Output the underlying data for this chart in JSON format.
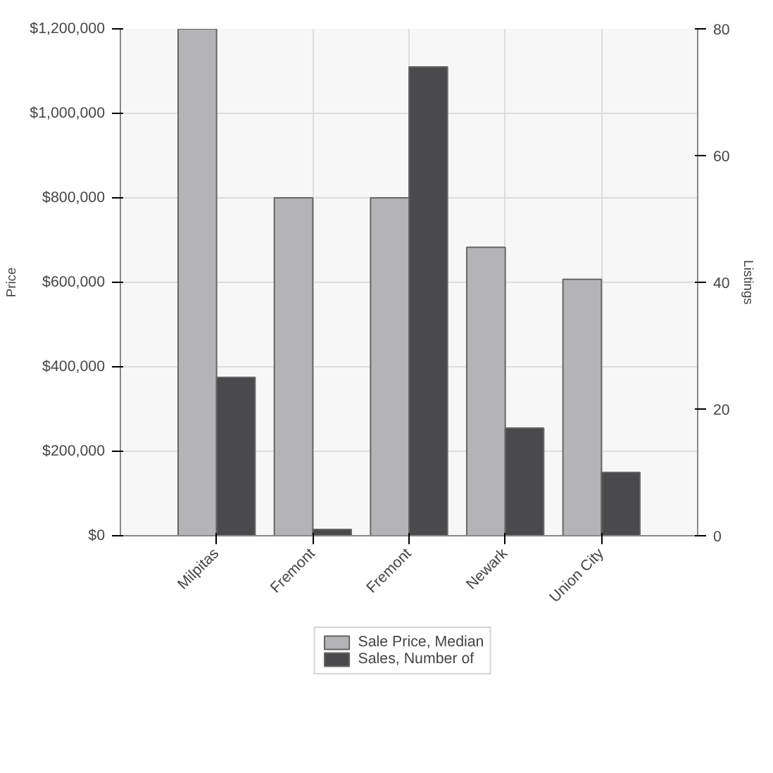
{
  "chart_data": {
    "type": "bar",
    "categories": [
      "Milpitas",
      "Fremont",
      "Fremont",
      "Newark",
      "Union City"
    ],
    "ylabel": "Price",
    "y2label": "Listings",
    "series": [
      {
        "name": "Sale Price, Median",
        "color": "#b4b4b6",
        "values": [
          1200000,
          800000,
          800000,
          683000,
          607000
        ]
      },
      {
        "name": "Sales, Number of",
        "color": "#4a4a4c",
        "values": [
          25,
          1,
          74,
          17,
          10
        ],
        "axis": "y2"
      }
    ],
    "ylim": [
      0,
      1200000
    ],
    "yticks": [
      {
        "value": 0,
        "label": "$0"
      },
      {
        "value": 200000,
        "label": "$200,000"
      },
      {
        "value": 400000,
        "label": "$400,000"
      },
      {
        "value": 600000,
        "label": "$600,000"
      },
      {
        "value": 800000,
        "label": "$800,000"
      },
      {
        "value": 1000000,
        "label": "$1,000,000"
      },
      {
        "value": 1200000,
        "label": "$1,200,000"
      }
    ],
    "y2lim": [
      0,
      80
    ],
    "y2ticks": [
      0,
      20,
      40,
      60,
      80
    ],
    "grid": true,
    "legend": "bottom"
  }
}
